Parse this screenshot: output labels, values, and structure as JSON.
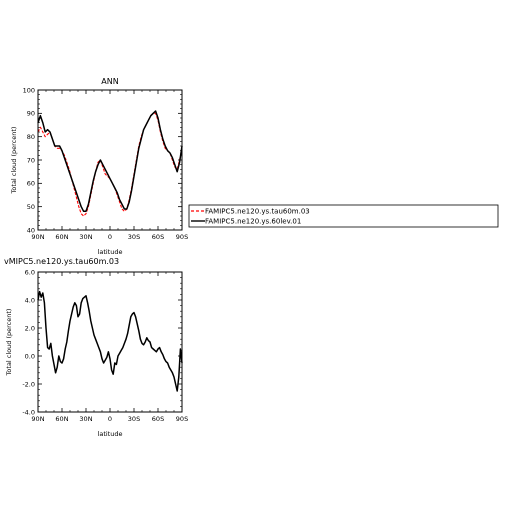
{
  "chart_data": [
    {
      "type": "line",
      "title": "ANN",
      "xlabel": "latitude",
      "ylabel": "Total cloud (percent)",
      "xlim": [
        90,
        -90
      ],
      "ylim": [
        40,
        100
      ],
      "x_ticks": [
        90,
        60,
        30,
        0,
        -30,
        -60,
        -90
      ],
      "x_tick_labels": [
        "90N",
        "60N",
        "30N",
        "0",
        "30S",
        "60S",
        "90S"
      ],
      "y_ticks": [
        40,
        50,
        60,
        70,
        80,
        90,
        100
      ],
      "y_tick_labels": [
        "40",
        "50",
        "60",
        "70",
        "80",
        "90",
        "100"
      ],
      "legend": {
        "placement": "right",
        "entries": [
          {
            "label": "FAMIPC5.ne120.ys.tau60m.03",
            "color": "#ff0000",
            "style": "dashed"
          },
          {
            "label": "FAMIPC5.ne120.ys.60lev.01",
            "color": "#000000",
            "style": "solid"
          }
        ]
      },
      "series": [
        {
          "name": "FAMIPC5.ne120.ys.tau60m.03",
          "color": "#ff0000",
          "style": "dashed",
          "x": [
            90,
            87,
            84,
            81,
            78,
            75,
            72,
            69,
            66,
            63,
            60,
            57,
            54,
            51,
            48,
            45,
            42,
            39,
            36,
            33,
            30,
            27,
            24,
            21,
            18,
            15,
            12,
            9,
            6,
            3,
            0,
            -3,
            -6,
            -9,
            -12,
            -15,
            -18,
            -21,
            -24,
            -27,
            -30,
            -33,
            -36,
            -39,
            -42,
            -45,
            -48,
            -51,
            -54,
            -57,
            -60,
            -63,
            -66,
            -69,
            -72,
            -75,
            -78,
            -81,
            -84,
            -87,
            -90
          ],
          "y": [
            82,
            84,
            82,
            80,
            81,
            82,
            79,
            76,
            75,
            75,
            74,
            72,
            69,
            66,
            62,
            58,
            54,
            50,
            47,
            46,
            47,
            50,
            55,
            60,
            65,
            69,
            70,
            67,
            64,
            63,
            62,
            60,
            58,
            55,
            52,
            49,
            48,
            49,
            53,
            58,
            64,
            70,
            76,
            80,
            83,
            85,
            87,
            89,
            90,
            90,
            87,
            82,
            78,
            75,
            74,
            73,
            70,
            67,
            66,
            70,
            75
          ]
        },
        {
          "name": "FAMIPC5.ne120.ys.60lev.01",
          "color": "#000000",
          "style": "solid",
          "x": [
            90,
            87,
            84,
            81,
            78,
            75,
            72,
            69,
            66,
            63,
            60,
            57,
            54,
            51,
            48,
            45,
            42,
            39,
            36,
            33,
            30,
            27,
            24,
            21,
            18,
            15,
            12,
            9,
            6,
            3,
            0,
            -3,
            -6,
            -9,
            -12,
            -15,
            -18,
            -21,
            -24,
            -27,
            -30,
            -33,
            -36,
            -39,
            -42,
            -45,
            -48,
            -51,
            -54,
            -57,
            -60,
            -63,
            -66,
            -69,
            -72,
            -75,
            -78,
            -81,
            -84,
            -87,
            -90
          ],
          "y": [
            86,
            89,
            86,
            82,
            83,
            82,
            79,
            76,
            76,
            76,
            74,
            71,
            68,
            65,
            62,
            59,
            56,
            53,
            50,
            48,
            48,
            51,
            56,
            61,
            65,
            68,
            70,
            68,
            66,
            64,
            62,
            60,
            58,
            56,
            53,
            51,
            49,
            49,
            52,
            57,
            63,
            69,
            75,
            79,
            83,
            85,
            87,
            89,
            90,
            91,
            88,
            83,
            79,
            76,
            74,
            73,
            71,
            68,
            65,
            69,
            76
          ]
        }
      ]
    },
    {
      "type": "line",
      "title": "vMIPC5.ne120.ys.tau60m.03",
      "xlabel": "latitude",
      "ylabel": "Total cloud (percent)",
      "xlim": [
        90,
        -90
      ],
      "ylim": [
        -4,
        6
      ],
      "x_ticks": [
        90,
        60,
        30,
        0,
        -30,
        -60,
        -90
      ],
      "x_tick_labels": [
        "90N",
        "60N",
        "30N",
        "0",
        "30S",
        "60S",
        "90S"
      ],
      "y_ticks": [
        -4,
        -2,
        0,
        2,
        4,
        6
      ],
      "y_tick_labels": [
        "-4.0",
        "-2.0",
        "0.0",
        "2.0",
        "4.0",
        "6.0"
      ],
      "series": [
        {
          "color": "#000000",
          "style": "solid",
          "x": [
            90,
            88,
            86,
            84,
            82,
            80,
            78,
            76,
            74,
            72,
            70,
            68,
            66,
            64,
            62,
            60,
            58,
            56,
            54,
            52,
            50,
            48,
            46,
            44,
            42,
            40,
            38,
            36,
            34,
            32,
            30,
            28,
            26,
            24,
            22,
            20,
            18,
            16,
            14,
            12,
            10,
            8,
            6,
            4,
            2,
            0,
            -2,
            -4,
            -6,
            -8,
            -10,
            -12,
            -14,
            -16,
            -18,
            -20,
            -22,
            -24,
            -26,
            -28,
            -30,
            -32,
            -34,
            -36,
            -38,
            -40,
            -42,
            -44,
            -46,
            -48,
            -50,
            -52,
            -54,
            -56,
            -58,
            -60,
            -62,
            -64,
            -66,
            -68,
            -70,
            -72,
            -74,
            -76,
            -78,
            -80,
            -82,
            -84,
            -86,
            -88,
            -90
          ],
          "y": [
            4.0,
            4.6,
            4.2,
            4.5,
            3.8,
            2.0,
            0.6,
            0.5,
            0.9,
            0.0,
            -0.6,
            -1.2,
            -0.8,
            0.0,
            -0.4,
            -0.5,
            -0.2,
            0.5,
            1.0,
            1.8,
            2.5,
            3.0,
            3.5,
            3.8,
            3.6,
            2.8,
            3.0,
            3.8,
            4.1,
            4.2,
            4.3,
            3.8,
            3.2,
            2.5,
            2.0,
            1.5,
            1.2,
            0.9,
            0.6,
            0.3,
            -0.2,
            -0.5,
            -0.3,
            -0.1,
            0.3,
            -0.2,
            -1.0,
            -1.3,
            -0.5,
            -0.6,
            0.0,
            0.2,
            0.4,
            0.6,
            0.9,
            1.2,
            1.6,
            2.2,
            2.8,
            3.0,
            3.1,
            2.8,
            2.3,
            1.8,
            1.2,
            0.9,
            0.8,
            1.0,
            1.3,
            1.1,
            1.0,
            0.6,
            0.5,
            0.4,
            0.3,
            0.5,
            0.6,
            0.3,
            0.1,
            -0.2,
            -0.4,
            -0.5,
            -0.8,
            -1.0,
            -1.2,
            -1.5,
            -2.0,
            -2.5,
            -1.5,
            0.5,
            -0.5
          ]
        }
      ]
    }
  ]
}
